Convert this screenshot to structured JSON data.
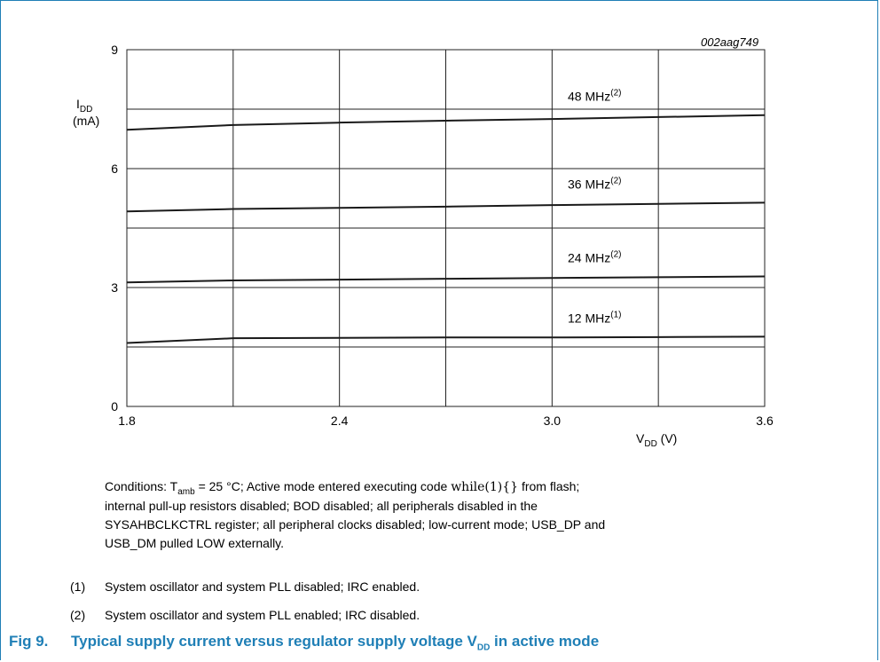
{
  "figure": {
    "id": "002aag749",
    "caption_number": "Fig 9.",
    "caption_text": "Typical supply current versus regulator supply voltage V",
    "caption_sub": "DD",
    "caption_tail": " in active mode"
  },
  "axes": {
    "y_label_main": "I",
    "y_label_sub": "DD",
    "y_unit": "(mA)",
    "x_label_main": "V",
    "x_label_sub": "DD",
    "x_unit": " (V)"
  },
  "chart_data": {
    "type": "line",
    "title": "",
    "xlabel": "VDD (V)",
    "ylabel": "IDD (mA)",
    "xlim": [
      1.8,
      3.6
    ],
    "ylim": [
      0,
      9
    ],
    "x_ticks": [
      "1.8",
      "2.4",
      "3.0",
      "3.6"
    ],
    "y_ticks": [
      "0",
      "3",
      "6",
      "9"
    ],
    "grid": true,
    "series": [
      {
        "name": "48 MHz",
        "note": "(2)",
        "x": [
          1.8,
          2.1,
          2.4,
          2.7,
          3.0,
          3.3,
          3.6
        ],
        "y": [
          6.98,
          7.1,
          7.16,
          7.21,
          7.25,
          7.3,
          7.35
        ]
      },
      {
        "name": "36 MHz",
        "note": "(2)",
        "x": [
          1.8,
          2.1,
          2.4,
          2.7,
          3.0,
          3.3,
          3.6
        ],
        "y": [
          4.92,
          4.98,
          5.01,
          5.04,
          5.08,
          5.11,
          5.14
        ]
      },
      {
        "name": "24 MHz",
        "note": "(2)",
        "x": [
          1.8,
          2.1,
          2.4,
          2.7,
          3.0,
          3.3,
          3.6
        ],
        "y": [
          3.13,
          3.18,
          3.2,
          3.22,
          3.24,
          3.26,
          3.28
        ]
      },
      {
        "name": "12 MHz",
        "note": "(1)",
        "x": [
          1.8,
          2.1,
          2.4,
          2.7,
          3.0,
          3.3,
          3.6
        ],
        "y": [
          1.6,
          1.72,
          1.73,
          1.74,
          1.74,
          1.75,
          1.76
        ]
      }
    ]
  },
  "conditions": {
    "prefix": "Conditions: T",
    "tamb_sub": "amb",
    "part1": " = 25 °C; Active mode entered executing code ",
    "code": "while(1){}",
    "part2": " from flash;",
    "line2": "internal pull-up resistors disabled; BOD disabled; all peripherals disabled in the",
    "line3": "SYSAHBCLKCTRL register; all peripheral clocks disabled; low-current mode; USB_DP and",
    "line4": "USB_DM pulled LOW externally."
  },
  "notes": [
    {
      "num": "(1)",
      "text": "System oscillator and system PLL disabled; IRC enabled."
    },
    {
      "num": "(2)",
      "text": "System oscillator and system PLL enabled; IRC disabled."
    }
  ],
  "colors": {
    "accent": "#1f7fb6",
    "line": "#1a1a1a",
    "grid": "#222222"
  }
}
